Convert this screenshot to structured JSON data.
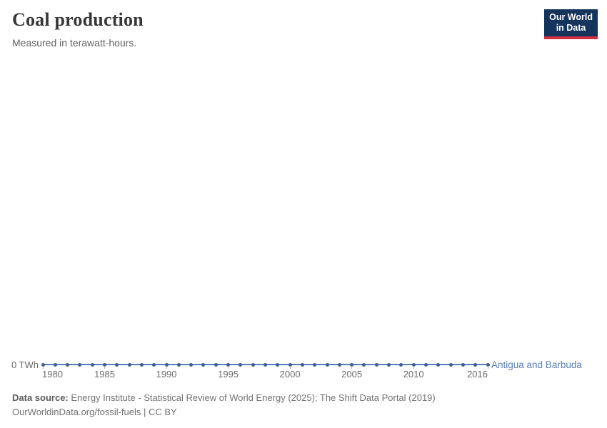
{
  "header": {
    "title": "Coal production",
    "subtitle": "Measured in terawatt-hours.",
    "logo_line1": "Our World",
    "logo_line2": "in Data"
  },
  "entity_label": "Antigua and Barbuda",
  "chart_data": {
    "type": "line",
    "title": "Coal production",
    "subtitle": "Measured in terawatt-hours.",
    "unit": "TWh",
    "grid": false,
    "legend": "entity-label-right-of-line",
    "y_axis_zero_label": "0 TWh",
    "xlim": [
      1980,
      2016
    ],
    "ylim": [
      0,
      0
    ],
    "x": [
      1980,
      1981,
      1982,
      1983,
      1984,
      1985,
      1986,
      1987,
      1988,
      1989,
      1990,
      1991,
      1992,
      1993,
      1994,
      1995,
      1996,
      1997,
      1998,
      1999,
      2000,
      2001,
      2002,
      2003,
      2004,
      2005,
      2006,
      2007,
      2008,
      2009,
      2010,
      2011,
      2012,
      2013,
      2014,
      2015,
      2016
    ],
    "series": [
      {
        "name": "Antigua and Barbuda",
        "values": [
          0,
          0,
          0,
          0,
          0,
          0,
          0,
          0,
          0,
          0,
          0,
          0,
          0,
          0,
          0,
          0,
          0,
          0,
          0,
          0,
          0,
          0,
          0,
          0,
          0,
          0,
          0,
          0,
          0,
          0,
          0,
          0,
          0,
          0,
          0,
          0,
          0
        ]
      }
    ],
    "x_ticks": [
      {
        "year": 1980,
        "label": "1980",
        "anchor": "start"
      },
      {
        "year": 1985,
        "label": "1985",
        "anchor": "middle"
      },
      {
        "year": 1990,
        "label": "1990",
        "anchor": "middle"
      },
      {
        "year": 1995,
        "label": "1995",
        "anchor": "middle"
      },
      {
        "year": 2000,
        "label": "2000",
        "anchor": "middle"
      },
      {
        "year": 2005,
        "label": "2005",
        "anchor": "middle"
      },
      {
        "year": 2010,
        "label": "2010",
        "anchor": "middle"
      },
      {
        "year": 2016,
        "label": "2016",
        "anchor": "end"
      }
    ]
  },
  "colors": {
    "line": "#577eb5",
    "dot": "#3d5f94",
    "entity_label": "#577eb5",
    "logo_bg": "#14345c",
    "logo_red": "#d0303f"
  },
  "footer": {
    "datasource_label": "Data source:",
    "datasource_text": "Energy Institute - Statistical Review of World Energy (2025); The Shift Data Portal (2019)",
    "license_line": "OurWorldinData.org/fossil-fuels | CC BY"
  }
}
